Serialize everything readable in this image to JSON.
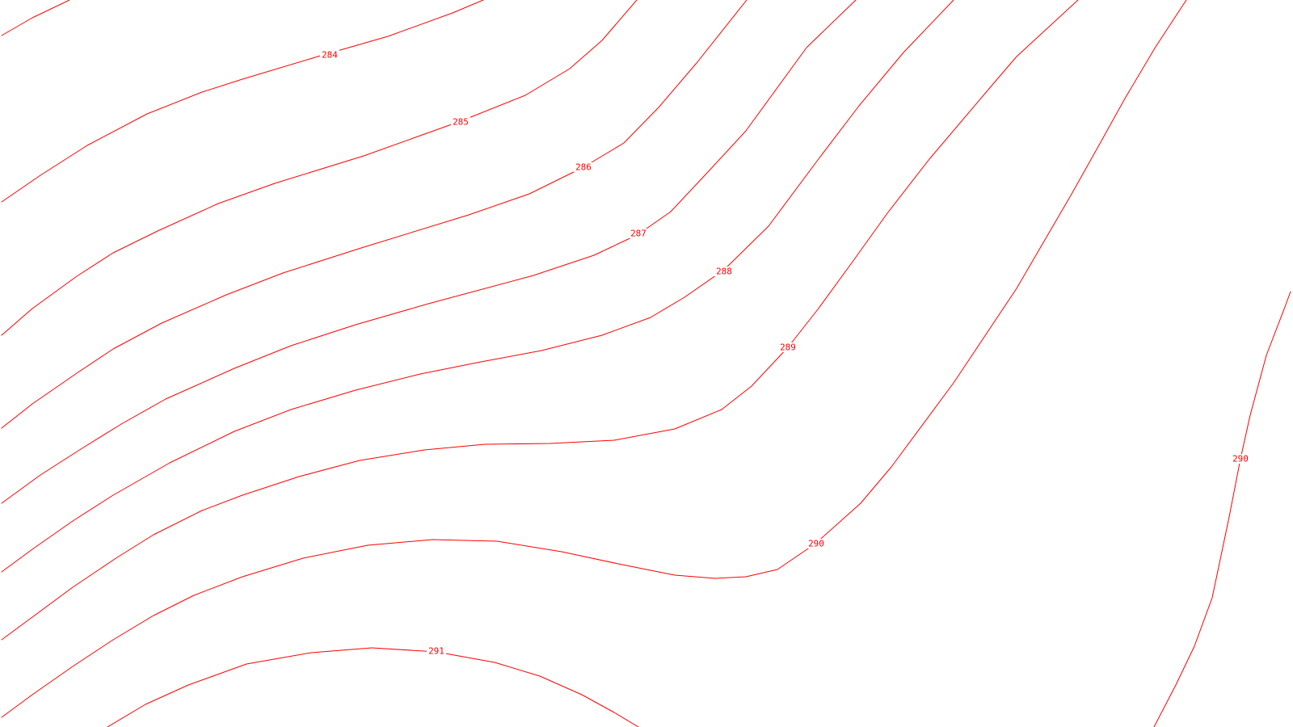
{
  "map": {
    "colors": {
      "contour": "#ff0000",
      "background": "#ffffff"
    },
    "contours": [
      {
        "value": "284",
        "label": "284"
      },
      {
        "value": "285",
        "label": "285"
      },
      {
        "value": "286",
        "label": "286"
      },
      {
        "value": "287",
        "label": "287"
      },
      {
        "value": "288",
        "label": "288"
      },
      {
        "value": "289",
        "label": "289"
      },
      {
        "value": "290",
        "label": "290"
      },
      {
        "value": "290",
        "label": "290"
      },
      {
        "value": "291",
        "label": "291"
      }
    ]
  }
}
